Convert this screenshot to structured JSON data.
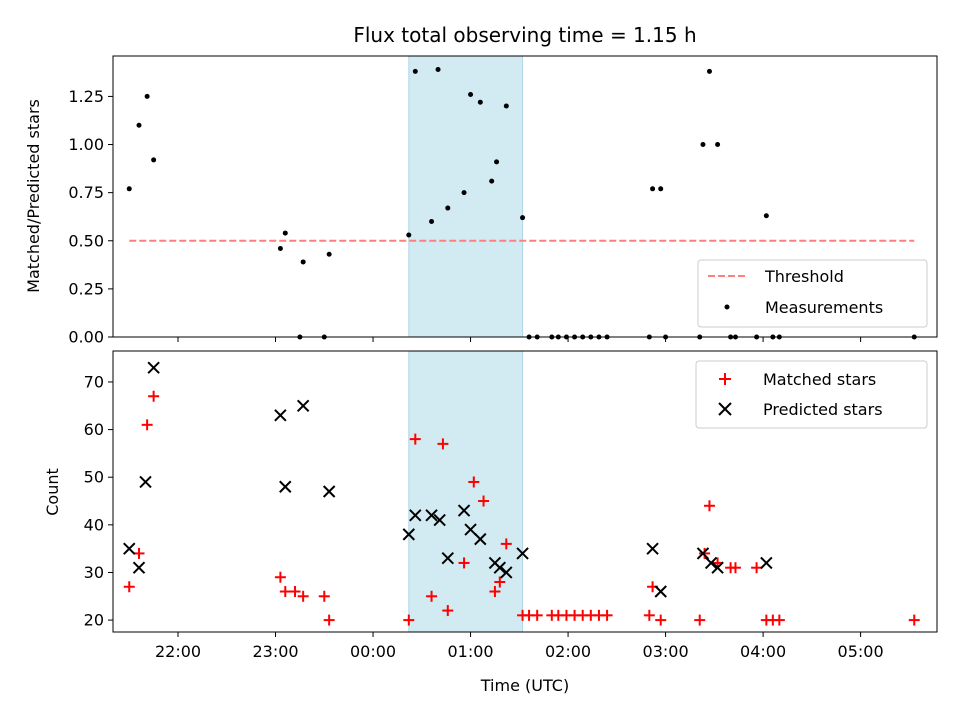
{
  "chart_data": [
    {
      "type": "scatter",
      "title": "Flux total observing time = 1.15 h",
      "ylabel": "Matched/Predicted stars",
      "xlabel": "",
      "xlim": [
        "21:20",
        "05:47"
      ],
      "ylim": [
        0,
        1.46
      ],
      "x_ticks": [
        "22:00",
        "23:00",
        "00:00",
        "01:00",
        "02:00",
        "03:00",
        "04:00",
        "05:00"
      ],
      "y_ticks": [
        "0.00",
        "0.25",
        "0.50",
        "0.75",
        "1.00",
        "1.25"
      ],
      "grid": false,
      "legend_position": "lower-right",
      "shaded_region": {
        "start": "00:22",
        "end": "01:32",
        "color": "#add8e6"
      },
      "threshold": {
        "name": "Threshold",
        "value": 0.5,
        "x_start": "21:30",
        "x_end": "05:33",
        "color": "#ff7f7f",
        "style": "dashed"
      },
      "series": [
        {
          "name": "Measurements",
          "color": "#000000",
          "marker": "dot",
          "points": [
            [
              "21:30",
              0.77
            ],
            [
              "21:36",
              1.1
            ],
            [
              "21:41",
              1.25
            ],
            [
              "21:45",
              0.92
            ],
            [
              "23:03",
              0.46
            ],
            [
              "23:06",
              0.54
            ],
            [
              "23:15",
              0.0
            ],
            [
              "23:17",
              0.39
            ],
            [
              "23:30",
              0.0
            ],
            [
              "23:33",
              0.43
            ],
            [
              "00:22",
              0.53
            ],
            [
              "00:26",
              1.38
            ],
            [
              "00:36",
              0.6
            ],
            [
              "00:40",
              1.39
            ],
            [
              "00:46",
              0.67
            ],
            [
              "00:56",
              0.75
            ],
            [
              "01:00",
              1.26
            ],
            [
              "01:06",
              1.22
            ],
            [
              "01:13",
              0.81
            ],
            [
              "01:16",
              0.91
            ],
            [
              "01:22",
              1.2
            ],
            [
              "01:32",
              0.62
            ],
            [
              "01:36",
              0.0
            ],
            [
              "01:41",
              0.0
            ],
            [
              "01:50",
              0.0
            ],
            [
              "01:54",
              0.0
            ],
            [
              "01:59",
              0.0
            ],
            [
              "02:04",
              0.0
            ],
            [
              "02:09",
              0.0
            ],
            [
              "02:14",
              0.0
            ],
            [
              "02:19",
              0.0
            ],
            [
              "02:24",
              0.0
            ],
            [
              "02:50",
              0.0
            ],
            [
              "02:52",
              0.77
            ],
            [
              "02:57",
              0.77
            ],
            [
              "03:00",
              0.0
            ],
            [
              "03:21",
              0.0
            ],
            [
              "03:23",
              1.0
            ],
            [
              "03:27",
              1.38
            ],
            [
              "03:32",
              1.0
            ],
            [
              "03:40",
              0.0
            ],
            [
              "03:43",
              0.0
            ],
            [
              "03:56",
              0.0
            ],
            [
              "04:02",
              0.63
            ],
            [
              "04:06",
              0.0
            ],
            [
              "04:10",
              0.0
            ],
            [
              "05:33",
              0.0
            ]
          ]
        }
      ]
    },
    {
      "type": "scatter",
      "title": "",
      "ylabel": "Count",
      "xlabel": "Time (UTC)",
      "xlim": [
        "21:20",
        "05:47"
      ],
      "ylim": [
        17.5,
        76.5
      ],
      "x_ticks": [
        "22:00",
        "23:00",
        "00:00",
        "01:00",
        "02:00",
        "03:00",
        "04:00",
        "05:00"
      ],
      "y_ticks": [
        "20",
        "30",
        "40",
        "50",
        "60",
        "70"
      ],
      "grid": false,
      "legend_position": "upper-right",
      "shaded_region": {
        "start": "00:22",
        "end": "01:32",
        "color": "#add8e6"
      },
      "series": [
        {
          "name": "Matched stars",
          "color": "#ff0000",
          "marker": "plus",
          "points": [
            [
              "21:30",
              27
            ],
            [
              "21:36",
              34
            ],
            [
              "21:41",
              61
            ],
            [
              "21:45",
              67
            ],
            [
              "23:03",
              29
            ],
            [
              "23:06",
              26
            ],
            [
              "23:12",
              26
            ],
            [
              "23:17",
              25
            ],
            [
              "23:30",
              25
            ],
            [
              "23:33",
              20
            ],
            [
              "00:22",
              20
            ],
            [
              "00:26",
              58
            ],
            [
              "00:36",
              25
            ],
            [
              "00:43",
              57
            ],
            [
              "00:46",
              22
            ],
            [
              "00:56",
              32
            ],
            [
              "01:02",
              49
            ],
            [
              "01:08",
              45
            ],
            [
              "01:15",
              26
            ],
            [
              "01:18",
              28
            ],
            [
              "01:22",
              36
            ],
            [
              "01:32",
              21
            ],
            [
              "01:36",
              21
            ],
            [
              "01:41",
              21
            ],
            [
              "01:50",
              21
            ],
            [
              "01:54",
              21
            ],
            [
              "01:59",
              21
            ],
            [
              "02:04",
              21
            ],
            [
              "02:09",
              21
            ],
            [
              "02:14",
              21
            ],
            [
              "02:19",
              21
            ],
            [
              "02:24",
              21
            ],
            [
              "02:50",
              21
            ],
            [
              "02:52",
              27
            ],
            [
              "02:57",
              20
            ],
            [
              "03:21",
              20
            ],
            [
              "03:24",
              34
            ],
            [
              "03:27",
              44
            ],
            [
              "03:32",
              32
            ],
            [
              "03:40",
              31
            ],
            [
              "03:43",
              31
            ],
            [
              "03:56",
              31
            ],
            [
              "04:02",
              20
            ],
            [
              "04:06",
              20
            ],
            [
              "04:10",
              20
            ],
            [
              "05:33",
              20
            ]
          ]
        },
        {
          "name": "Predicted stars",
          "color": "#000000",
          "marker": "x",
          "points": [
            [
              "21:30",
              35
            ],
            [
              "21:36",
              31
            ],
            [
              "21:40",
              49
            ],
            [
              "21:45",
              73
            ],
            [
              "23:03",
              63
            ],
            [
              "23:06",
              48
            ],
            [
              "23:17",
              65
            ],
            [
              "23:33",
              47
            ],
            [
              "00:22",
              38
            ],
            [
              "00:26",
              42
            ],
            [
              "00:36",
              42
            ],
            [
              "00:41",
              41
            ],
            [
              "00:46",
              33
            ],
            [
              "00:56",
              43
            ],
            [
              "01:00",
              39
            ],
            [
              "01:06",
              37
            ],
            [
              "01:15",
              32
            ],
            [
              "01:18",
              31
            ],
            [
              "01:22",
              30
            ],
            [
              "01:32",
              34
            ],
            [
              "02:52",
              35
            ],
            [
              "02:57",
              26
            ],
            [
              "03:23",
              34
            ],
            [
              "03:28",
              32
            ],
            [
              "03:32",
              31
            ],
            [
              "04:02",
              32
            ]
          ]
        }
      ]
    }
  ]
}
